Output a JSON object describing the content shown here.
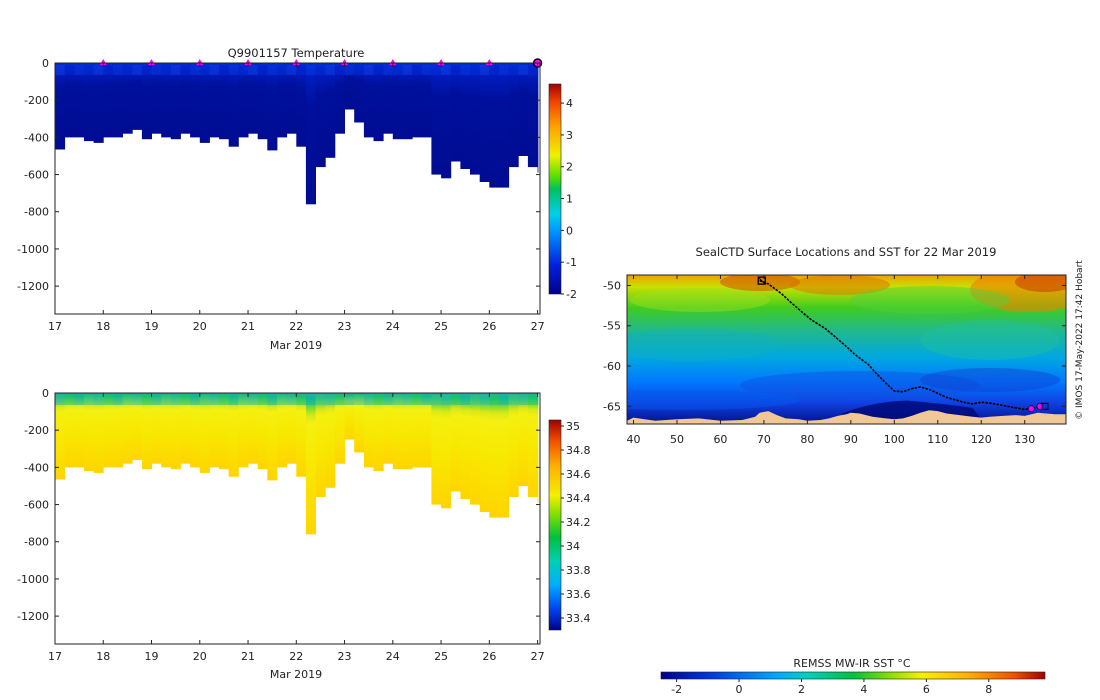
{
  "temperature_panel": {
    "title": "Q9901157  Temperature",
    "x_ticks": [
      "17",
      "18",
      "19",
      "20",
      "21",
      "22",
      "23",
      "24",
      "25",
      "26",
      "27"
    ],
    "x_label": "Mar 2019",
    "y_ticks": [
      "0",
      "-200",
      "-400",
      "-600",
      "-800",
      "-1000",
      "-1200"
    ],
    "colorbar_ticks": [
      "4",
      "3",
      "2",
      "1",
      "0",
      "-1",
      "-2"
    ]
  },
  "salinity_panel": {
    "x_ticks": [
      "17",
      "18",
      "19",
      "20",
      "21",
      "22",
      "23",
      "24",
      "25",
      "26",
      "27"
    ],
    "x_label": "Mar 2019",
    "y_ticks": [
      "0",
      "-200",
      "-400",
      "-600",
      "-800",
      "-1000",
      "-1200"
    ],
    "colorbar_ticks": [
      "35",
      "34.8",
      "34.6",
      "34.4",
      "34.2",
      "34",
      "33.8",
      "33.6",
      "33.4"
    ]
  },
  "map_panel": {
    "title": "SealCTD Surface Locations and SST for 22 Mar 2019",
    "x_ticks": [
      "40",
      "50",
      "60",
      "70",
      "80",
      "90",
      "100",
      "110",
      "120",
      "130"
    ],
    "y_ticks": [
      "-50",
      "-55",
      "-60",
      "-65"
    ],
    "credit": "© IMOS 17-May-2022 17:42 Hobart",
    "colorbar_label": "REMSS MW-IR SST °C",
    "colorbar_ticks": [
      "-2",
      "0",
      "2",
      "4",
      "6",
      "8"
    ]
  },
  "colors": {
    "marker": "#ff00ff",
    "land": "#f2c796",
    "track": "#000000"
  },
  "chart_data": [
    {
      "type": "heatmap",
      "name": "temperature-section",
      "title": "Q9901157  Temperature",
      "xlabel": "Mar 2019",
      "ylabel": "",
      "xlim": [
        17,
        27.05
      ],
      "ylim": [
        -1350,
        0
      ],
      "colorbar_range": [
        -2,
        4.6
      ],
      "profile_days": [
        17.0,
        17.2,
        17.4,
        17.6,
        17.8,
        18.0,
        18.2,
        18.4,
        18.6,
        18.8,
        19.0,
        19.2,
        19.4,
        19.6,
        19.8,
        20.0,
        20.2,
        20.4,
        20.6,
        20.8,
        21.0,
        21.2,
        21.4,
        21.6,
        21.8,
        22.0,
        22.2,
        22.4,
        22.6,
        22.8,
        23.0,
        23.2,
        23.4,
        23.6,
        23.8,
        24.0,
        24.2,
        24.4,
        24.6,
        24.8,
        25.0,
        25.2,
        25.4,
        25.6,
        25.8,
        26.0,
        26.2,
        26.4,
        26.6,
        26.8,
        27.0
      ],
      "profile_max_depths": [
        -465,
        -400,
        -400,
        -420,
        -430,
        -400,
        -400,
        -380,
        -360,
        -410,
        -380,
        -400,
        -410,
        -380,
        -400,
        -430,
        -400,
        -410,
        -450,
        -400,
        -380,
        -410,
        -470,
        -400,
        -380,
        -450,
        -760,
        -560,
        -510,
        -380,
        -250,
        -320,
        -400,
        -420,
        -380,
        -410,
        -410,
        -400,
        -400,
        -600,
        -620,
        -530,
        -570,
        -600,
        -640,
        -670,
        -670,
        -560,
        -500,
        -560,
        -590
      ],
      "surface_markers_day": [
        18,
        19,
        20,
        21,
        22,
        23,
        24,
        25,
        26,
        27
      ]
    },
    {
      "type": "heatmap",
      "name": "salinity-section",
      "title": "",
      "xlabel": "Mar 2019",
      "ylabel": "",
      "xlim": [
        17,
        27.05
      ],
      "ylim": [
        -1350,
        0
      ],
      "colorbar_range": [
        33.3,
        35.05
      ],
      "profile_days": [
        17.0,
        17.2,
        17.4,
        17.6,
        17.8,
        18.0,
        18.2,
        18.4,
        18.6,
        18.8,
        19.0,
        19.2,
        19.4,
        19.6,
        19.8,
        20.0,
        20.2,
        20.4,
        20.6,
        20.8,
        21.0,
        21.2,
        21.4,
        21.6,
        21.8,
        22.0,
        22.2,
        22.4,
        22.6,
        22.8,
        23.0,
        23.2,
        23.4,
        23.6,
        23.8,
        24.0,
        24.2,
        24.4,
        24.6,
        24.8,
        25.0,
        25.2,
        25.4,
        25.6,
        25.8,
        26.0,
        26.2,
        26.4,
        26.6,
        26.8,
        27.0
      ],
      "profile_max_depths": [
        -465,
        -400,
        -400,
        -420,
        -430,
        -400,
        -400,
        -380,
        -360,
        -410,
        -380,
        -400,
        -410,
        -380,
        -400,
        -430,
        -400,
        -410,
        -450,
        -400,
        -380,
        -410,
        -470,
        -400,
        -380,
        -450,
        -760,
        -560,
        -510,
        -380,
        -250,
        -320,
        -400,
        -420,
        -380,
        -410,
        -410,
        -400,
        -400,
        -600,
        -620,
        -530,
        -570,
        -600,
        -640,
        -670,
        -670,
        -560,
        -500,
        -560,
        -590
      ]
    },
    {
      "type": "scatter",
      "name": "sst-map",
      "title": "SealCTD Surface Locations and SST for 22 Mar 2019",
      "xlabel": "",
      "ylabel": "",
      "xlim": [
        38.5,
        139.5
      ],
      "ylim": [
        -67.2,
        -48.7
      ],
      "colorbar_range": [
        -2.5,
        9.8
      ],
      "track": {
        "lon": [
          69,
          71,
          74,
          76,
          79,
          81,
          84,
          86,
          89,
          91,
          94,
          96,
          98,
          100,
          102,
          104,
          106,
          108,
          110,
          112,
          114,
          116,
          118,
          120,
          122,
          124,
          126,
          128,
          130,
          132,
          133
        ],
        "lat": [
          -49.4,
          -49.8,
          -51.0,
          -52.0,
          -53.4,
          -54.3,
          -55.3,
          -56.2,
          -57.6,
          -58.6,
          -59.8,
          -61.0,
          -62.1,
          -63.1,
          -63.2,
          -62.8,
          -62.6,
          -62.9,
          -63.4,
          -63.9,
          -64.2,
          -64.5,
          -64.7,
          -64.5,
          -64.6,
          -64.8,
          -65.0,
          -65.2,
          -65.4,
          -65.2,
          -65.1
        ]
      },
      "surface_locations": [
        {
          "lon": 131.5,
          "lat": -65.3
        },
        {
          "lon": 133.5,
          "lat": -65.0
        }
      ],
      "deployment_marker": {
        "lon": 69.5,
        "lat": -49.4
      },
      "land": {
        "lon": [
          38.5,
          40,
          45,
          50,
          55,
          60,
          65,
          68,
          69,
          71,
          73,
          75,
          78,
          80,
          83,
          85,
          87,
          89,
          90,
          92,
          95,
          98,
          100,
          102,
          104,
          106,
          108,
          110,
          112,
          115,
          118,
          120,
          122,
          125,
          128,
          130,
          133,
          135,
          137,
          139.5
        ],
        "lat": [
          -66.8,
          -66.4,
          -66.8,
          -66.6,
          -66.5,
          -66.8,
          -66.7,
          -66.3,
          -65.8,
          -65.6,
          -66.1,
          -66.5,
          -66.6,
          -66.8,
          -66.7,
          -66.5,
          -66.2,
          -66.0,
          -65.8,
          -65.9,
          -66.3,
          -66.5,
          -66.6,
          -66.5,
          -66.2,
          -65.8,
          -65.5,
          -65.6,
          -65.9,
          -66.1,
          -66.3,
          -66.4,
          -66.3,
          -66.2,
          -66.1,
          -66.2,
          -65.8,
          -65.9,
          -66.0,
          -66.0
        ]
      }
    }
  ]
}
